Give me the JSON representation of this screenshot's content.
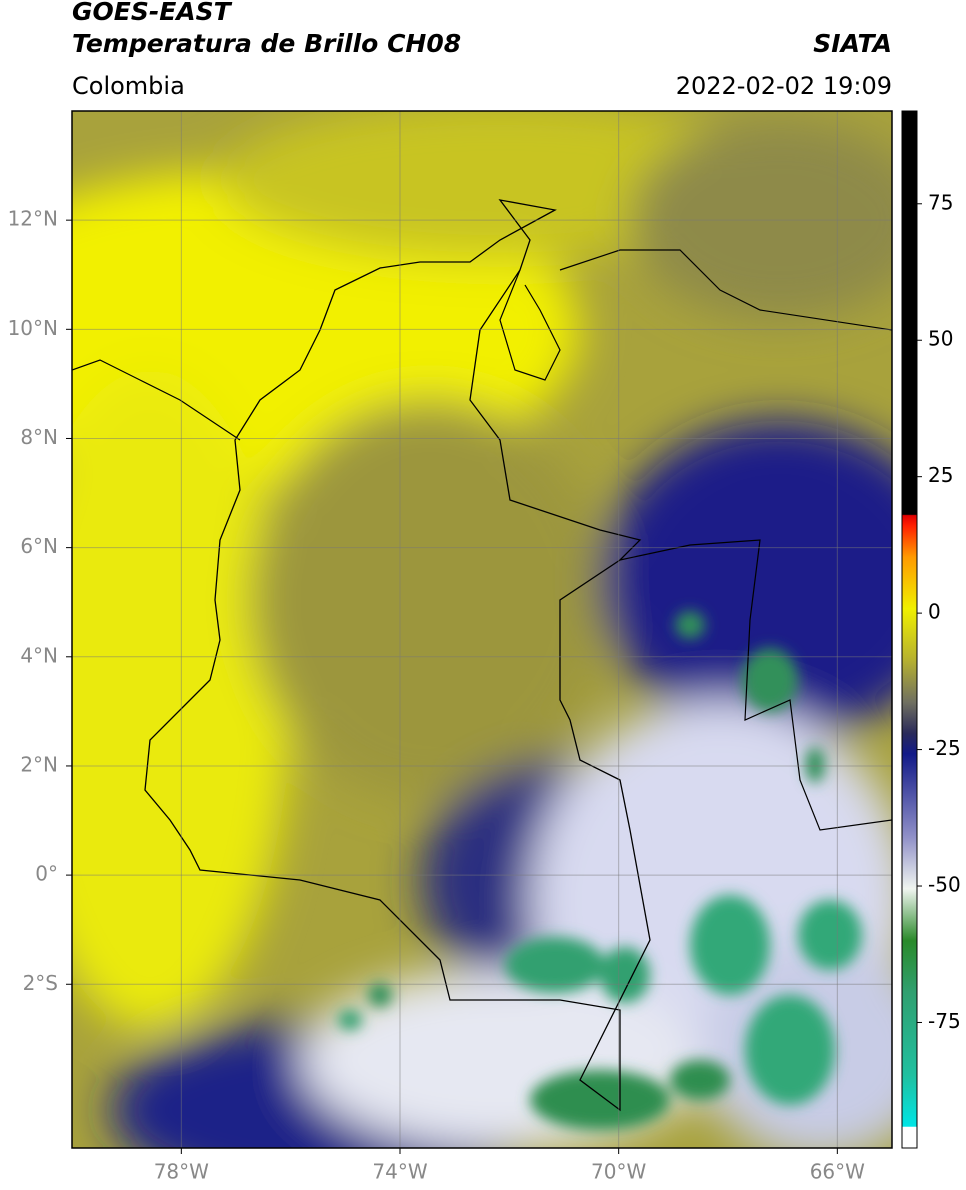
{
  "header": {
    "title": "GOES-EAST",
    "subtitle": "Temperatura de Brillo CH08",
    "source": "SIATA",
    "region": "Colombia",
    "datetime": "2022-02-02 19:09"
  },
  "map": {
    "xlim": [
      -80,
      -65
    ],
    "ylim": [
      -5,
      14
    ],
    "xticks": [
      {
        "value": -78,
        "label": "78°W"
      },
      {
        "value": -74,
        "label": "74°W"
      },
      {
        "value": -70,
        "label": "70°W"
      },
      {
        "value": -66,
        "label": "66°W"
      }
    ],
    "yticks": [
      {
        "value": 12,
        "label": "12°N"
      },
      {
        "value": 10,
        "label": "10°N"
      },
      {
        "value": 8,
        "label": "8°N"
      },
      {
        "value": 6,
        "label": "6°N"
      },
      {
        "value": 4,
        "label": "4°N"
      },
      {
        "value": 2,
        "label": "2°N"
      },
      {
        "value": 0,
        "label": "0°"
      },
      {
        "value": -2,
        "label": "2°S"
      }
    ],
    "grid": true
  },
  "colorbar": {
    "lim": [
      -98,
      92
    ],
    "ticks": [
      75,
      50,
      25,
      0,
      -25,
      -50,
      -75
    ]
  }
}
